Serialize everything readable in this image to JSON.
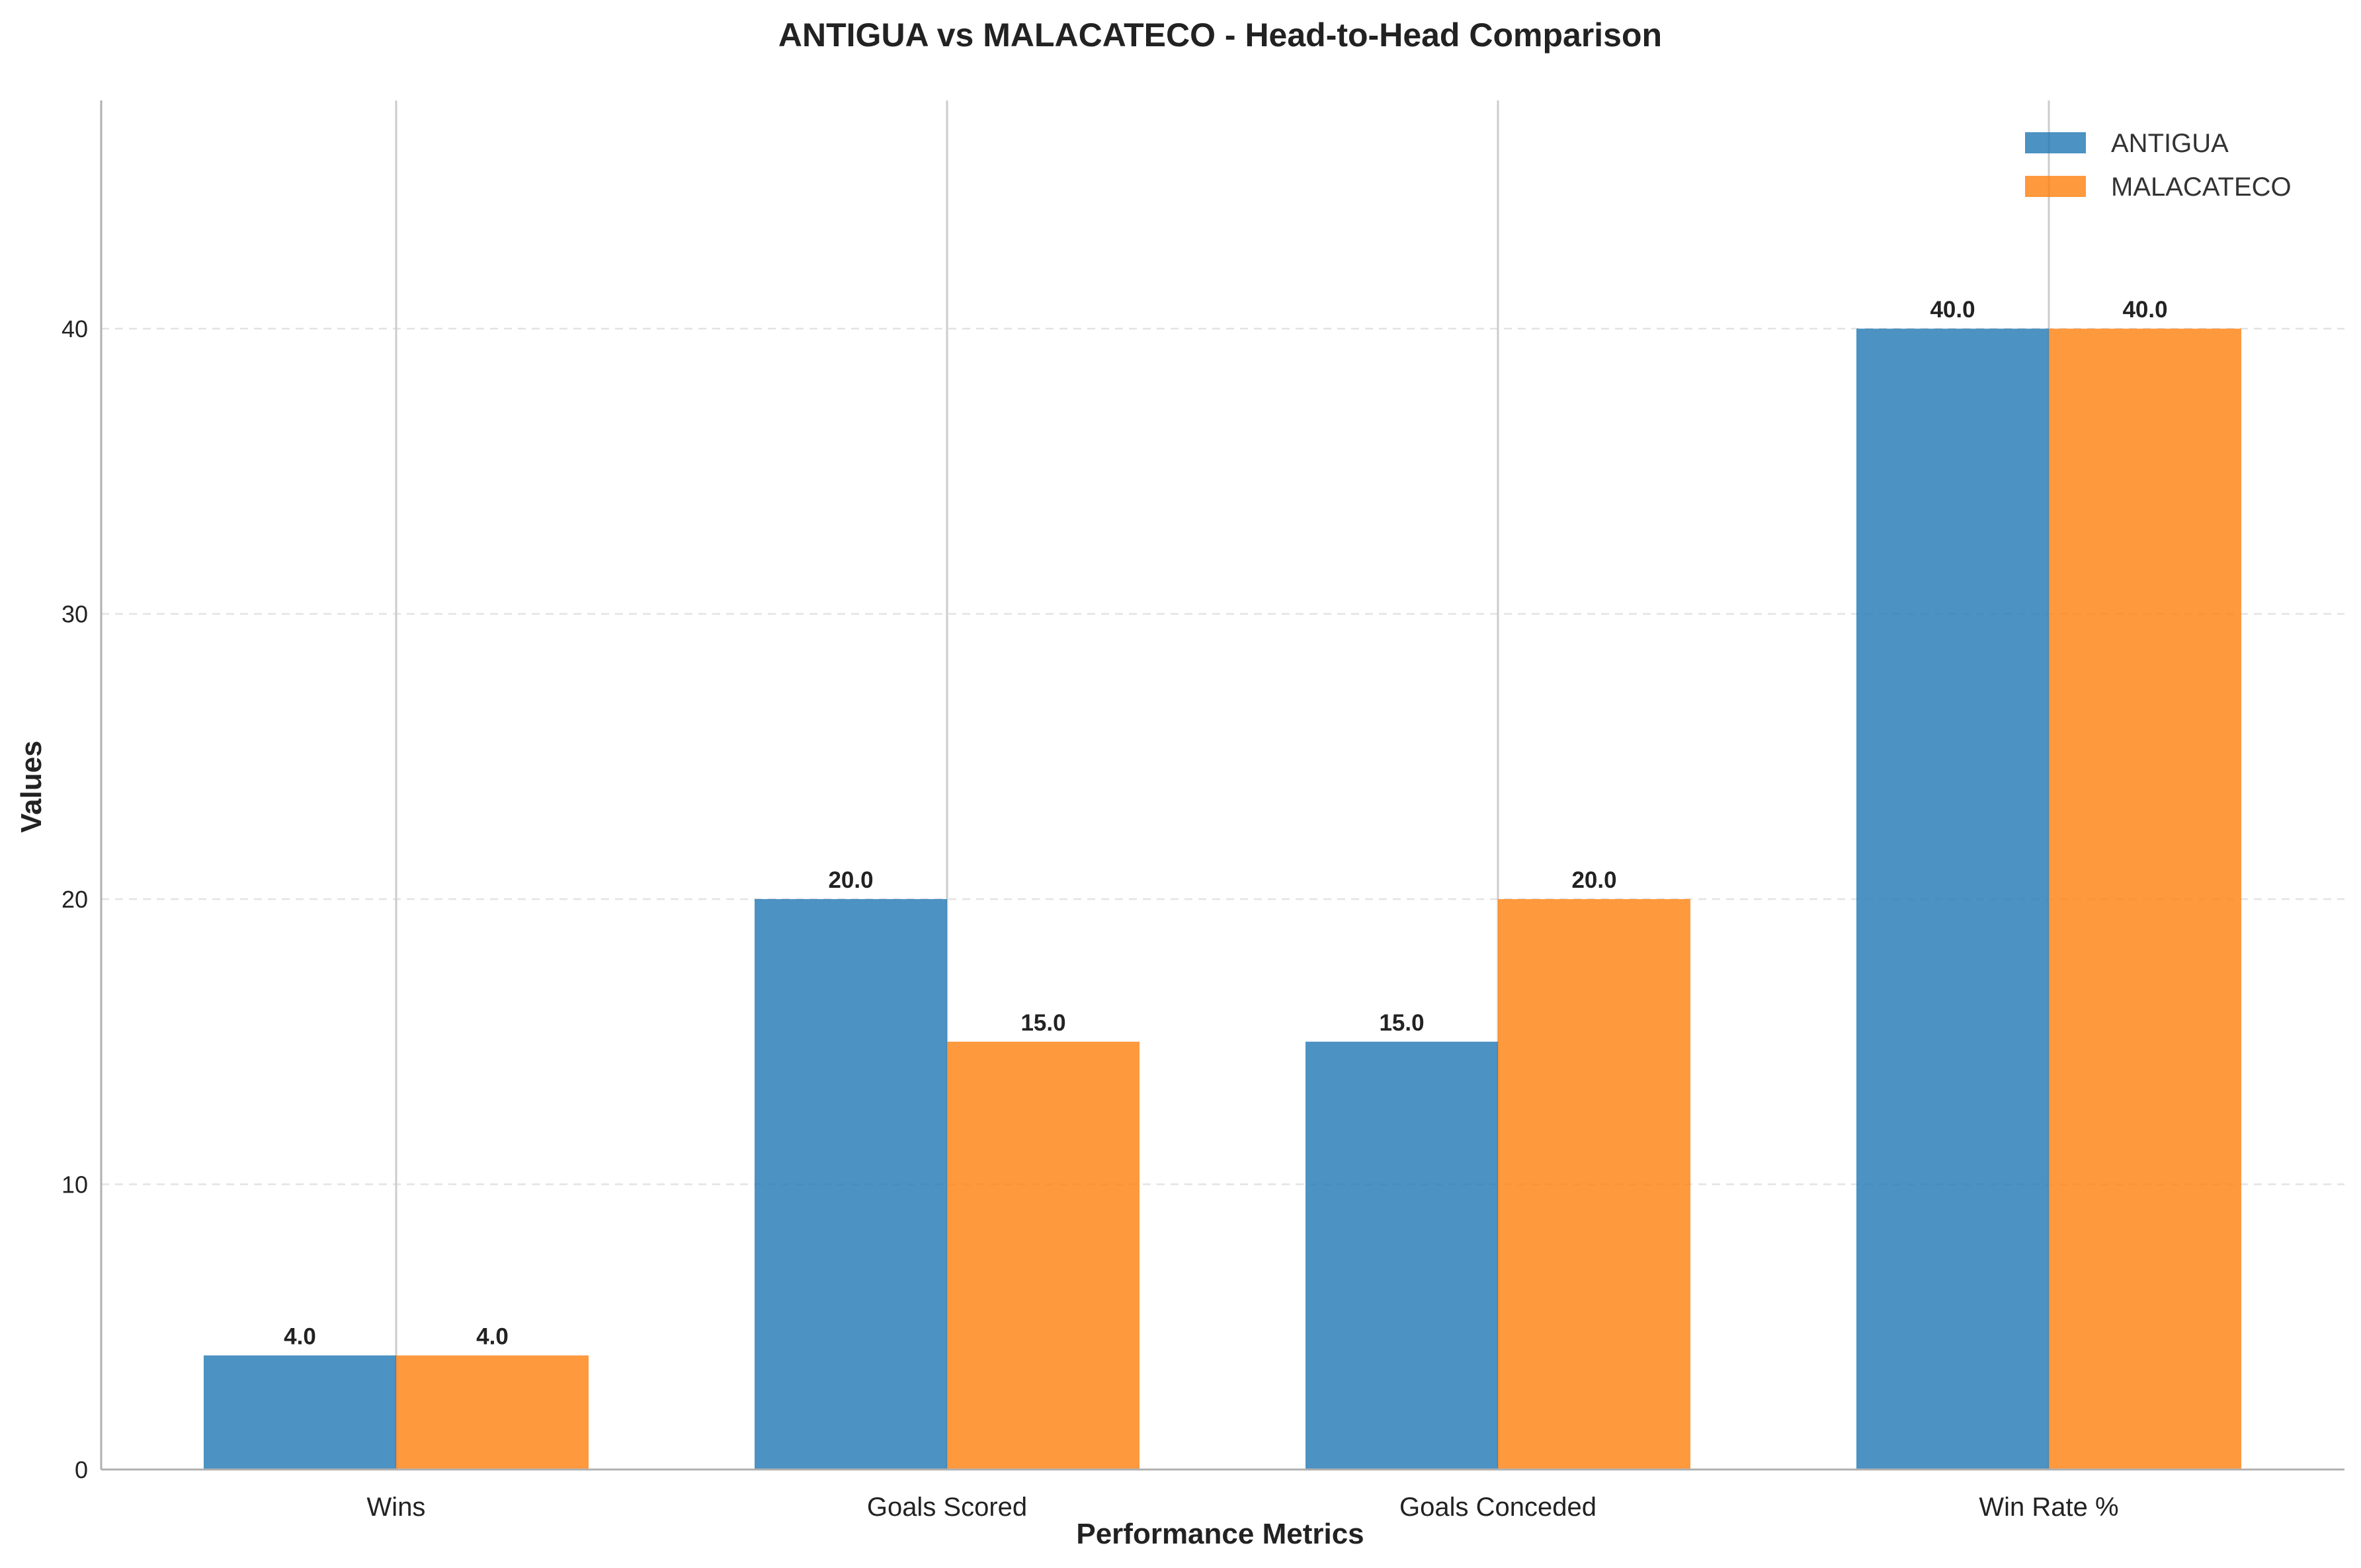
{
  "chart_data": {
    "type": "bar",
    "title": "ANTIGUA vs MALACATECO - Head-to-Head Comparison",
    "xlabel": "Performance Metrics",
    "ylabel": "Values",
    "categories": [
      "Wins",
      "Goals Scored",
      "Goals Conceded",
      "Win Rate %"
    ],
    "series": [
      {
        "name": "ANTIGUA",
        "values": [
          4.0,
          20.0,
          15.0,
          40.0
        ],
        "color": "#1f77b4"
      },
      {
        "name": "MALACATECO",
        "values": [
          4.0,
          15.0,
          20.0,
          40.0
        ],
        "color": "#ff7f0e"
      }
    ],
    "bar_label_decimals": 1,
    "ylim": [
      0,
      48
    ],
    "yticks": [
      0,
      10,
      20,
      30,
      40
    ],
    "grid": "horizontal dashed",
    "legend_position": "top-right"
  }
}
